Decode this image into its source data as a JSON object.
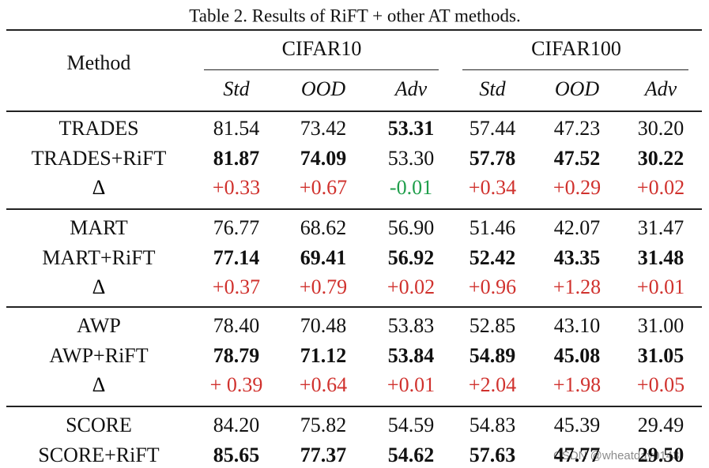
{
  "title": "Table 2. Results of RiFT + other AT methods.",
  "header": {
    "method": "Method",
    "datasets": [
      "CIFAR10",
      "CIFAR100"
    ],
    "metrics": [
      "Std",
      "OOD",
      "Adv",
      "Std",
      "OOD",
      "Adv"
    ]
  },
  "groups": [
    {
      "rows": [
        {
          "cells": [
            "TRADES",
            "81.54",
            "73.42",
            "53.31",
            "57.44",
            "47.23",
            "30.20"
          ],
          "bold": [
            3
          ]
        },
        {
          "cells": [
            "TRADES+RiFT",
            "81.87",
            "74.09",
            "53.30",
            "57.78",
            "47.52",
            "30.22"
          ],
          "bold": [
            1,
            2,
            4,
            5,
            6
          ]
        },
        {
          "cells": [
            "Δ",
            "+0.33",
            "+0.67",
            "-0.01",
            "+0.34",
            "+0.29",
            "+0.02"
          ],
          "bold": [],
          "colors": [
            "#000000",
            "#d0312d",
            "#d0312d",
            "#1e9e4a",
            "#d0312d",
            "#d0312d",
            "#d0312d"
          ]
        }
      ]
    },
    {
      "rows": [
        {
          "cells": [
            "MART",
            "76.77",
            "68.62",
            "56.90",
            "51.46",
            "42.07",
            "31.47"
          ],
          "bold": []
        },
        {
          "cells": [
            "MART+RiFT",
            "77.14",
            "69.41",
            "56.92",
            "52.42",
            "43.35",
            "31.48"
          ],
          "bold": [
            1,
            2,
            3,
            4,
            5,
            6
          ]
        },
        {
          "cells": [
            "Δ",
            "+0.37",
            "+0.79",
            "+0.02",
            "+0.96",
            "+1.28",
            "+0.01"
          ],
          "bold": [],
          "colors": [
            "#000000",
            "#d0312d",
            "#d0312d",
            "#d0312d",
            "#d0312d",
            "#d0312d",
            "#d0312d"
          ]
        }
      ]
    },
    {
      "rows": [
        {
          "cells": [
            "AWP",
            "78.40",
            "70.48",
            "53.83",
            "52.85",
            "43.10",
            "31.00"
          ],
          "bold": []
        },
        {
          "cells": [
            "AWP+RiFT",
            "78.79",
            "71.12",
            "53.84",
            "54.89",
            "45.08",
            "31.05"
          ],
          "bold": [
            1,
            2,
            3,
            4,
            5,
            6
          ]
        },
        {
          "cells": [
            "Δ",
            "+ 0.39",
            "+0.64",
            "+0.01",
            "+2.04",
            "+1.98",
            "+0.05"
          ],
          "bold": [],
          "colors": [
            "#000000",
            "#d0312d",
            "#d0312d",
            "#d0312d",
            "#d0312d",
            "#d0312d",
            "#d0312d"
          ]
        }
      ]
    },
    {
      "rows": [
        {
          "cells": [
            "SCORE",
            "84.20",
            "75.82",
            "54.59",
            "54.83",
            "45.39",
            "29.49"
          ],
          "bold": []
        },
        {
          "cells": [
            "SCORE+RiFT",
            "85.65",
            "77.37",
            "54.62",
            "57.63",
            "47.77",
            "29.50"
          ],
          "bold": [
            1,
            2,
            3,
            4,
            5,
            6
          ]
        }
      ]
    }
  ],
  "watermark": "CSDN @wheatday0143"
}
